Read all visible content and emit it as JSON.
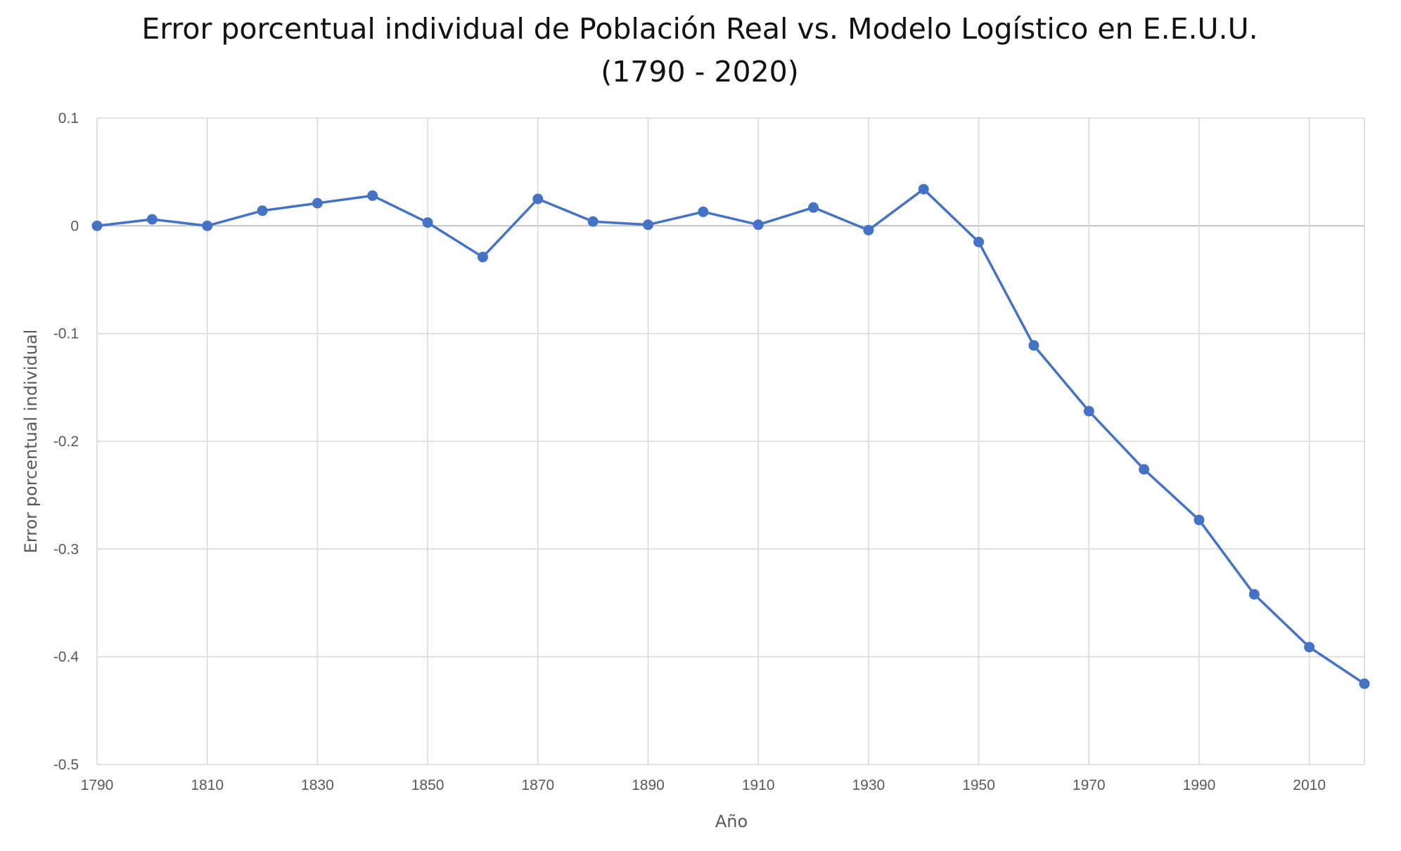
{
  "chart_data": {
    "type": "line",
    "title_lines": [
      "Error porcentual individual de Población Real vs. Modelo Logístico en E.E.U.U.",
      "(1790   - 2020)"
    ],
    "xlabel": "Año",
    "ylabel": "Error porcentual individual",
    "xlim": [
      1790,
      2020
    ],
    "ylim": [
      -0.5,
      0.1
    ],
    "x_ticks": [
      1790,
      1810,
      1830,
      1850,
      1870,
      1890,
      1910,
      1930,
      1950,
      1970,
      1990,
      2010
    ],
    "y_ticks": [
      0.1,
      0,
      -0.1,
      -0.2,
      -0.3,
      -0.4,
      -0.5
    ],
    "grid": true,
    "legend": "none",
    "series": [
      {
        "color": "#4472c4",
        "x": [
          1790,
          1800,
          1810,
          1820,
          1830,
          1840,
          1850,
          1860,
          1870,
          1880,
          1890,
          1900,
          1910,
          1920,
          1930,
          1940,
          1950,
          1960,
          1970,
          1980,
          1990,
          2000,
          2010,
          2020
        ],
        "y": [
          0.0,
          0.006,
          0.0,
          0.014,
          0.021,
          0.028,
          0.003,
          -0.029,
          0.025,
          0.004,
          0.001,
          0.013,
          0.001,
          0.017,
          -0.004,
          0.034,
          -0.015,
          -0.111,
          -0.172,
          -0.226,
          -0.273,
          -0.342,
          -0.391,
          -0.425
        ]
      }
    ]
  }
}
